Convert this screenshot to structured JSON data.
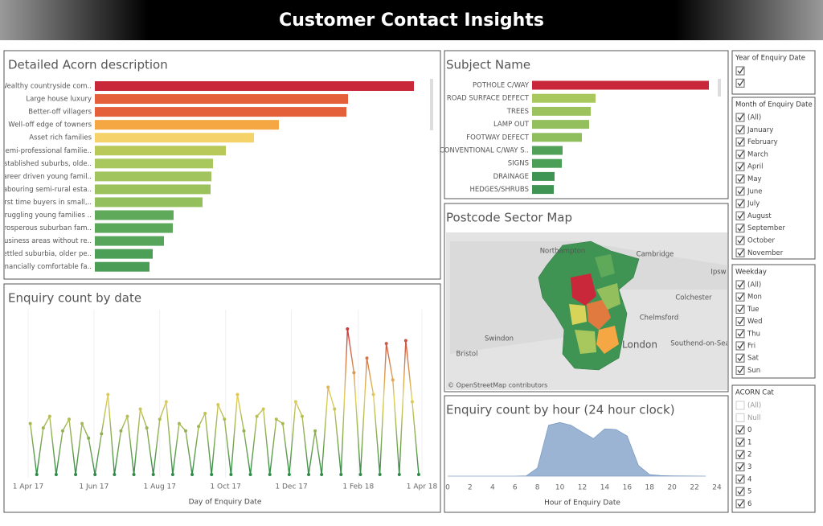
{
  "header": {
    "title": "Customer Contact Insights"
  },
  "chart_data": [
    {
      "type": "hbar",
      "title": "Detailed Acorn description",
      "categories": [
        "Wealthy countryside com..",
        "Large house luxury",
        "Better-off villagers",
        "Well-off edge of towners",
        "Asset rich families",
        "Semi-professional familie..",
        "Established suburbs, olde..",
        "Career driven young famil..",
        "Labouring semi-rural esta..",
        "First time buyers in small,..",
        "Struggling young families ..",
        "Prosperous suburban fam..",
        "Business areas without re..",
        "Settled suburbia, older pe..",
        "Financially comfortable fa.."
      ],
      "values": [
        397,
        315,
        313,
        229,
        198,
        163,
        147,
        145,
        144,
        134,
        98,
        97,
        86,
        72,
        68
      ],
      "colors": [
        "#c9283a",
        "#e3603b",
        "#e3603b",
        "#f4a742",
        "#f5d36a",
        "#b8c95a",
        "#a8c75c",
        "#a1c45e",
        "#9cc25e",
        "#93bf5d",
        "#5eaa5a",
        "#5ba85a",
        "#56a55a",
        "#4c9f57",
        "#4a9d57"
      ]
    },
    {
      "type": "hbar",
      "title": "Subject Name",
      "categories": [
        "POTHOLE C/WAY",
        "ROAD SURFACE DEFECT",
        "TREES",
        "LAMP OUT",
        "FOOTWAY DEFECT",
        "CONVENTIONAL C/WAY S..",
        "SIGNS",
        "DRAINAGE",
        "HEDGES/SHRUBS"
      ],
      "values": [
        220,
        79,
        73,
        71,
        62,
        38,
        37,
        28,
        27
      ],
      "colors": [
        "#c9283a",
        "#a8c75c",
        "#9cc25e",
        "#93bf5d",
        "#8fbe5c",
        "#50a058",
        "#4c9f57",
        "#3f9454",
        "#3f9454"
      ]
    },
    {
      "type": "line",
      "title": "Enquiry count by date",
      "x_label": "Day of Enquiry Date",
      "x": [
        "2017-04-03",
        "2017-04-09",
        "2017-04-15",
        "2017-04-21",
        "2017-04-27",
        "2017-05-03",
        "2017-05-09",
        "2017-05-15",
        "2017-05-21",
        "2017-05-27",
        "2017-06-02",
        "2017-06-08",
        "2017-06-14",
        "2017-06-20",
        "2017-06-26",
        "2017-07-02",
        "2017-07-08",
        "2017-07-14",
        "2017-07-20",
        "2017-07-26",
        "2017-08-01",
        "2017-08-07",
        "2017-08-13",
        "2017-08-19",
        "2017-08-25",
        "2017-08-31",
        "2017-09-06",
        "2017-09-12",
        "2017-09-18",
        "2017-09-24",
        "2017-09-30",
        "2017-10-06",
        "2017-10-12",
        "2017-10-18",
        "2017-10-24",
        "2017-10-30",
        "2017-11-05",
        "2017-11-11",
        "2017-11-17",
        "2017-11-23",
        "2017-11-29",
        "2017-12-05",
        "2017-12-11",
        "2017-12-17",
        "2017-12-23",
        "2017-12-29",
        "2018-01-04",
        "2018-01-10",
        "2018-01-16",
        "2018-01-22",
        "2018-01-28",
        "2018-02-03",
        "2018-02-09",
        "2018-02-15",
        "2018-02-21",
        "2018-02-27",
        "2018-03-05",
        "2018-03-11",
        "2018-03-17",
        "2018-03-23",
        "2018-03-29"
      ],
      "values": [
        35,
        0,
        32,
        40,
        0,
        30,
        38,
        0,
        35,
        25,
        0,
        28,
        55,
        0,
        30,
        40,
        0,
        45,
        32,
        0,
        38,
        50,
        0,
        35,
        30,
        0,
        33,
        42,
        0,
        48,
        38,
        0,
        55,
        30,
        0,
        40,
        45,
        0,
        38,
        35,
        0,
        50,
        40,
        0,
        30,
        0,
        60,
        45,
        0,
        100,
        70,
        0,
        80,
        55,
        0,
        90,
        65,
        0,
        92,
        50,
        0
      ],
      "xlim": [
        "2017-04-01",
        "2018-04-01"
      ],
      "xticks": [
        {
          "value": "2017-04-01",
          "label": "1 Apr 17"
        },
        {
          "value": "2017-06-01",
          "label": "1 Jun 17"
        },
        {
          "value": "2017-08-01",
          "label": "1 Aug 17"
        },
        {
          "value": "2017-10-01",
          "label": "1 Oct 17"
        },
        {
          "value": "2017-12-01",
          "label": "1 Dec 17"
        },
        {
          "value": "2018-02-01",
          "label": "1 Feb 18"
        },
        {
          "value": "2018-04-01",
          "label": "1 Apr 18"
        }
      ],
      "ylim": [
        0,
        105
      ]
    },
    {
      "type": "area",
      "title": "Enquiry count by hour (24 hour clock)",
      "x_label": "Hour of Enquiry Date",
      "color": "#9cb4d3",
      "x": [
        0,
        1,
        2,
        3,
        4,
        5,
        6,
        7,
        8,
        9,
        10,
        11,
        12,
        13,
        14,
        15,
        16,
        17,
        18,
        19,
        20,
        21,
        22,
        23
      ],
      "values": [
        0,
        0,
        0,
        0,
        0,
        0,
        0,
        0.5,
        15,
        95,
        100,
        95,
        82,
        70,
        88,
        87,
        75,
        20,
        3,
        1,
        0.5,
        0.3,
        0.2,
        0
      ],
      "xlim": [
        0,
        24
      ],
      "xticks": [
        0,
        2,
        4,
        6,
        8,
        10,
        12,
        14,
        16,
        18,
        20,
        22,
        24
      ],
      "ylim": [
        0,
        105
      ]
    }
  ],
  "map": {
    "title": "Postcode Sector Map",
    "places": [
      "Northampton",
      "Cambridge",
      "Ipsw",
      "Colchester",
      "Chelmsford",
      "Swindon",
      "Bristol",
      "London",
      "Southend-on-Sea"
    ],
    "attribution": "© OpenStreetMap contributors"
  },
  "filters": [
    {
      "title": "Year of Enquiry Date",
      "items": [
        {
          "checked": true
        },
        {
          "checked": true
        }
      ]
    },
    {
      "title": "Month of Enquiry Date",
      "items": [
        {
          "label": "(All)",
          "checked": true
        },
        {
          "label": "January",
          "checked": true
        },
        {
          "label": "February",
          "checked": true
        },
        {
          "label": "March",
          "checked": true
        },
        {
          "label": "April",
          "checked": true
        },
        {
          "label": "May",
          "checked": true
        },
        {
          "label": "June",
          "checked": true
        },
        {
          "label": "July",
          "checked": true
        },
        {
          "label": "August",
          "checked": true
        },
        {
          "label": "September",
          "checked": true
        },
        {
          "label": "October",
          "checked": true
        },
        {
          "label": "November",
          "checked": true
        }
      ]
    },
    {
      "title": "Weekday",
      "items": [
        {
          "label": "(All)",
          "checked": true
        },
        {
          "label": "Mon",
          "checked": true
        },
        {
          "label": "Tue",
          "checked": true
        },
        {
          "label": "Wed",
          "checked": true
        },
        {
          "label": "Thu",
          "checked": true
        },
        {
          "label": "Fri",
          "checked": true
        },
        {
          "label": "Sat",
          "checked": true
        },
        {
          "label": "Sun",
          "checked": true
        }
      ]
    },
    {
      "title": "ACORN Cat",
      "items": [
        {
          "label": "(All)",
          "checked": false
        },
        {
          "label": "Null",
          "checked": false
        },
        {
          "label": "0",
          "checked": true
        },
        {
          "label": "1",
          "checked": true
        },
        {
          "label": "2",
          "checked": true
        },
        {
          "label": "3",
          "checked": true
        },
        {
          "label": "4",
          "checked": true
        },
        {
          "label": "5",
          "checked": true
        },
        {
          "label": "6",
          "checked": true
        }
      ]
    }
  ]
}
